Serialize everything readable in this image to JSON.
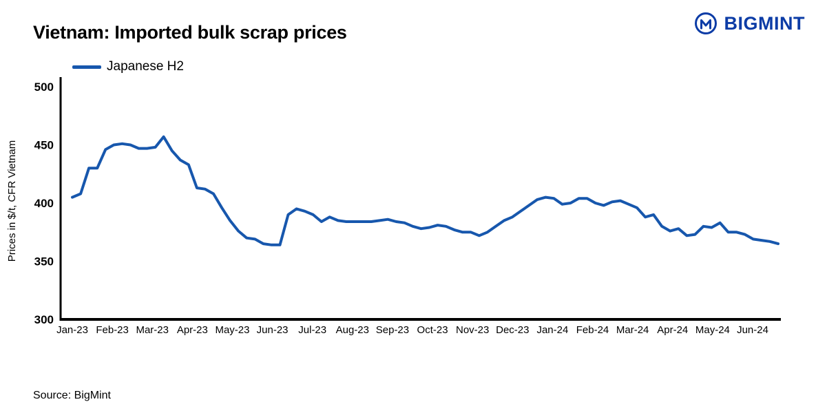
{
  "header": {
    "title": "Vietnam: Imported bulk scrap prices",
    "brand": "BIGMINT"
  },
  "legend": {
    "label": "Japanese H2"
  },
  "source": {
    "text": "Source: BigMint"
  },
  "colors": {
    "line": "#1757ad",
    "brand": "#0c3ca6",
    "axis": "#000000"
  },
  "chart_data": {
    "type": "line",
    "title": "Vietnam: Imported bulk scrap prices",
    "xlabel": "",
    "ylabel": "Prices in $/t, CFR Vietnam",
    "ylim": [
      300,
      500
    ],
    "yticks": [
      300,
      350,
      400,
      450,
      500
    ],
    "grid": false,
    "legend_position": "top-left",
    "x_labels": [
      "Jan-23",
      "Feb-23",
      "Mar-23",
      "Apr-23",
      "May-23",
      "Jun-23",
      "Jul-23",
      "Aug-23",
      "Sep-23",
      "Oct-23",
      "Nov-23",
      "Dec-23",
      "Jan-24",
      "Feb-24",
      "Mar-24",
      "Apr-24",
      "May-24",
      "Jun-24"
    ],
    "series": [
      {
        "name": "Japanese H2",
        "color": "#1757ad",
        "values": [
          405,
          408,
          430,
          430,
          446,
          450,
          451,
          450,
          447,
          447,
          448,
          457,
          445,
          437,
          433,
          413,
          412,
          408,
          396,
          385,
          376,
          370,
          369,
          365,
          364,
          364,
          390,
          395,
          393,
          390,
          384,
          388,
          385,
          384,
          384,
          384,
          384,
          385,
          386,
          384,
          383,
          380,
          378,
          379,
          381,
          380,
          377,
          375,
          375,
          372,
          375,
          380,
          385,
          388,
          393,
          398,
          403,
          405,
          404,
          399,
          400,
          404,
          404,
          400,
          398,
          401,
          402,
          399,
          396,
          388,
          390,
          380,
          376,
          378,
          372,
          373,
          380,
          379,
          383,
          375,
          375,
          373,
          369,
          368,
          367,
          365
        ]
      }
    ]
  }
}
